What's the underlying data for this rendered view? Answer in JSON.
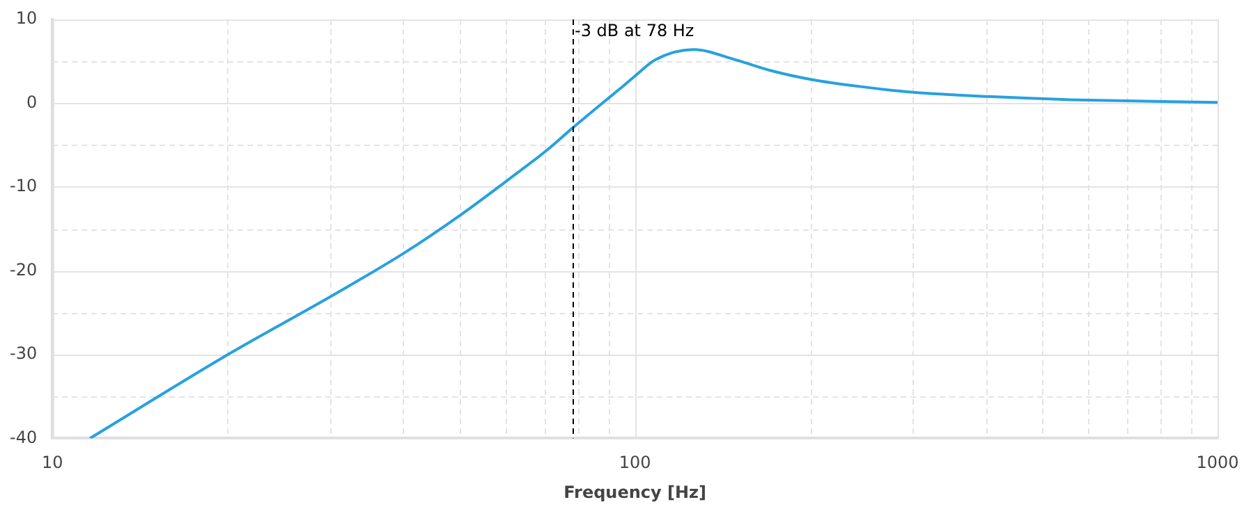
{
  "chart_data": {
    "type": "line",
    "xlabel": "Frequency [Hz]",
    "log": "x",
    "grid": true,
    "legend": false,
    "marker": "none",
    "line_style": "solid",
    "x": [
      11.6,
      20,
      30.5,
      40.1,
      50.5,
      60.4,
      70.6,
      78,
      89.3,
      94.5,
      99.8,
      108.5,
      126,
      148.6,
      171,
      202,
      243,
      301,
      404,
      580,
      1000
    ],
    "series": [
      {
        "color": "#27a1e0",
        "values": [
          -40,
          -30,
          -22.8,
          -17.9,
          -13.2,
          -9.2,
          -5.6,
          -3,
          0.4,
          1.8,
          3.2,
          5.2,
          6.4,
          5.2,
          3.9,
          2.8,
          2.0,
          1.3,
          0.8,
          0.4,
          0.1
        ]
      }
    ],
    "xlim": [
      10,
      1000
    ],
    "xticks": [
      10,
      {
        "value": 20,
        "label": null
      },
      {
        "value": 30,
        "label": null
      },
      {
        "value": 40,
        "label": null
      },
      {
        "value": 50,
        "label": null
      },
      {
        "value": 60,
        "label": null
      },
      {
        "value": 70,
        "label": null
      },
      {
        "value": 80,
        "label": null
      },
      {
        "value": 90,
        "label": null
      },
      100,
      {
        "value": 200,
        "label": null
      },
      {
        "value": 300,
        "label": null
      },
      {
        "value": 400,
        "label": null
      },
      {
        "value": 500,
        "label": null
      },
      {
        "value": 600,
        "label": null
      },
      {
        "value": 700,
        "label": null
      },
      {
        "value": 800,
        "label": null
      },
      {
        "value": 900,
        "label": null
      },
      1000
    ],
    "ylim": [
      -40,
      10
    ],
    "yticks": [
      -40,
      {
        "value": -35,
        "label": null
      },
      -30,
      {
        "value": -25,
        "label": null
      },
      -20,
      {
        "value": -15,
        "label": null
      },
      -10,
      {
        "value": -5,
        "label": null
      },
      0,
      {
        "value": 5,
        "label": null
      },
      10
    ],
    "ref_lines": [
      {
        "axis": "x",
        "value": 78,
        "label": "-3 dB at 78 Hz",
        "color": "#000000",
        "line_style": "dashed"
      }
    ]
  }
}
